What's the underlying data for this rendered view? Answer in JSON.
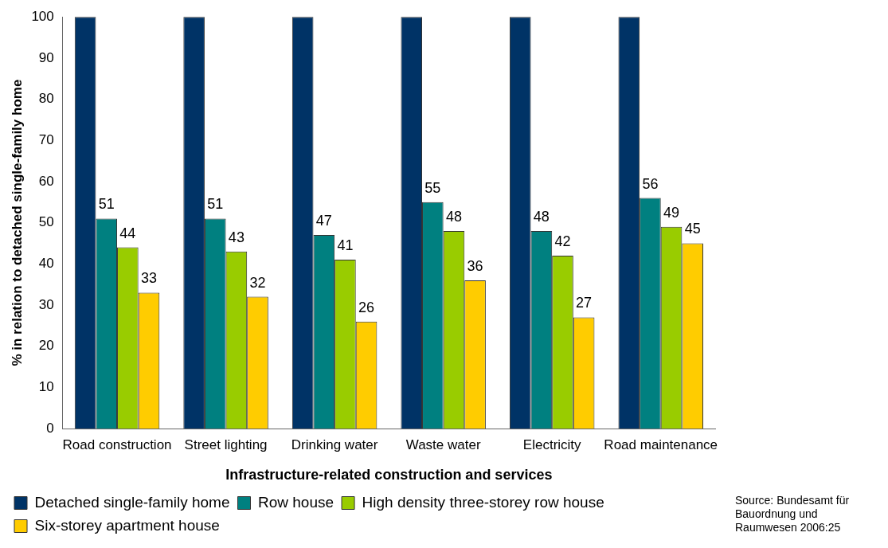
{
  "chart_data": {
    "type": "bar",
    "ylabel": "% in relation to detached single-family home",
    "xlabel": "Infrastructure-related construction and services",
    "categories": [
      "Road construction",
      "Street lighting",
      "Drinking water",
      "Waste water",
      "Electricity",
      "Road maintenance"
    ],
    "series": [
      {
        "name": "Detached single-family home",
        "color": "#003366",
        "values": [
          100,
          100,
          100,
          100,
          100,
          100
        ],
        "value_labels": [
          null,
          null,
          null,
          null,
          null,
          null
        ]
      },
      {
        "name": "Row house",
        "color": "#008080",
        "values": [
          51,
          51,
          47,
          55,
          48,
          56
        ],
        "value_labels": [
          "51",
          "51",
          "47",
          "55",
          "48",
          "56"
        ]
      },
      {
        "name": "High density three-storey row house",
        "color": "#99cc00",
        "values": [
          44,
          43,
          41,
          48,
          42,
          49
        ],
        "value_labels": [
          "44",
          "43",
          "41",
          "48",
          "42",
          "49"
        ]
      },
      {
        "name": "Six-storey apartment house",
        "color": "#ffcc00",
        "values": [
          33,
          32,
          26,
          36,
          27,
          45
        ],
        "value_labels": [
          "33",
          "32",
          "26",
          "36",
          "27",
          "45"
        ]
      }
    ],
    "ylim": [
      0,
      100
    ],
    "yticks": [
      0,
      10,
      20,
      30,
      40,
      50,
      60,
      70,
      80,
      90,
      100
    ],
    "grid": false,
    "legend": "bottom",
    "annotations": [
      "Source: Bundesamt für Bauordnung und Raumwesen 2006:25"
    ]
  }
}
